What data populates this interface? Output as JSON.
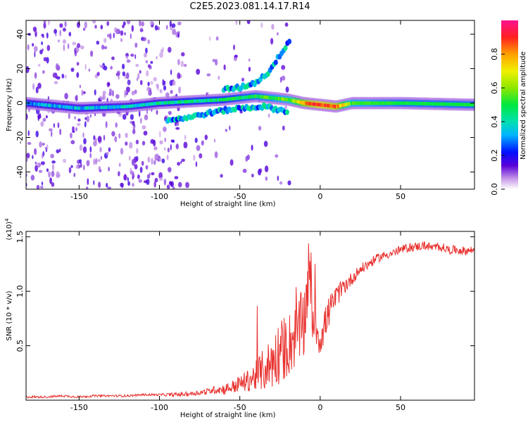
{
  "title": "C2E5.2023.081.14.17.R14",
  "colors": {
    "line": "#e8312e",
    "frame": "#000000"
  },
  "chart_data": [
    {
      "type": "heatmap",
      "xlabel": "Height of straight line (km)",
      "ylabel": "Frequency (Hz)",
      "xlim": [
        -183,
        96
      ],
      "ylim": [
        -50,
        48
      ],
      "xticks": [
        -150,
        -100,
        -50,
        0,
        50
      ],
      "yticks": [
        -40,
        -20,
        0,
        20,
        40
      ],
      "xtick_labels": [
        "-150",
        "-100",
        "-50",
        "0",
        "50"
      ],
      "ytick_labels": [
        "-40",
        "-20",
        "0",
        "20",
        "40"
      ],
      "colorbar": {
        "label": "Normalized spectral amplitude",
        "range": [
          0,
          1
        ],
        "ticks": [
          0.0,
          0.2,
          0.4,
          0.6,
          0.8
        ],
        "tick_labels": [
          "0.0",
          "0.2",
          "0.4",
          "0.6",
          "0.8"
        ]
      },
      "main_band": [
        {
          "x": -183,
          "f": 0,
          "amp": 0.3
        },
        {
          "x": -150,
          "f": -3,
          "amp": 0.35
        },
        {
          "x": -120,
          "f": -2,
          "amp": 0.35
        },
        {
          "x": -100,
          "f": 0,
          "amp": 0.4
        },
        {
          "x": -80,
          "f": 1,
          "amp": 0.45
        },
        {
          "x": -60,
          "f": 2,
          "amp": 0.45
        },
        {
          "x": -40,
          "f": 4,
          "amp": 0.5
        },
        {
          "x": -20,
          "f": 2,
          "amp": 0.55
        },
        {
          "x": -10,
          "f": 0,
          "amp": 0.8
        },
        {
          "x": 0,
          "f": -1,
          "amp": 0.9
        },
        {
          "x": 10,
          "f": -2,
          "amp": 0.85
        },
        {
          "x": 20,
          "f": 0,
          "amp": 0.55
        },
        {
          "x": 50,
          "f": 0,
          "amp": 0.5
        },
        {
          "x": 96,
          "f": -1,
          "amp": 0.5
        }
      ],
      "upper_branch": [
        {
          "x": -60,
          "f": 8
        },
        {
          "x": -50,
          "f": 9
        },
        {
          "x": -40,
          "f": 12
        },
        {
          "x": -32,
          "f": 18
        },
        {
          "x": -25,
          "f": 28
        },
        {
          "x": -18,
          "f": 38
        }
      ],
      "lower_branch": [
        {
          "x": -95,
          "f": -10
        },
        {
          "x": -80,
          "f": -8
        },
        {
          "x": -65,
          "f": -5
        },
        {
          "x": -50,
          "f": -3
        },
        {
          "x": -35,
          "f": -2
        },
        {
          "x": -20,
          "f": -5
        }
      ]
    },
    {
      "type": "line",
      "xlabel": "Height of straight line (km)",
      "ylabel": "SNR (10 * v/v)",
      "yscale_label": "(x10^4)",
      "xlim": [
        -183,
        96
      ],
      "ylim": [
        0,
        1.55
      ],
      "xticks": [
        -150,
        -100,
        -50,
        0,
        50
      ],
      "yticks": [
        0.5,
        1.0,
        1.5
      ],
      "xtick_labels": [
        "-150",
        "-100",
        "-50",
        "0",
        "50"
      ],
      "ytick_labels": [
        "0.5",
        "1.0",
        "1.5"
      ],
      "series": [
        {
          "x": [
            -183,
            -170,
            -160,
            -150,
            -140,
            -130,
            -120,
            -110,
            -100,
            -90,
            -80,
            -70,
            -65,
            -60,
            -55,
            -50,
            -45,
            -40,
            -35,
            -30,
            -25,
            -20,
            -15,
            -10,
            -7,
            -5,
            0,
            5,
            10,
            15,
            20,
            25,
            30,
            35,
            40,
            45,
            50,
            55,
            60,
            65,
            70,
            75,
            80,
            85,
            90,
            96
          ],
          "values": [
            0.03,
            0.03,
            0.04,
            0.03,
            0.04,
            0.04,
            0.04,
            0.05,
            0.05,
            0.05,
            0.06,
            0.08,
            0.1,
            0.1,
            0.12,
            0.15,
            0.18,
            0.22,
            0.28,
            0.35,
            0.45,
            0.5,
            0.6,
            0.7,
            1.2,
            0.8,
            0.55,
            0.8,
            0.95,
            1.05,
            1.12,
            1.2,
            1.25,
            1.3,
            1.33,
            1.35,
            1.38,
            1.4,
            1.41,
            1.42,
            1.4,
            1.41,
            1.38,
            1.38,
            1.37,
            1.38
          ],
          "noise": [
            0.01,
            0.01,
            0.01,
            0.01,
            0.01,
            0.01,
            0.01,
            0.01,
            0.01,
            0.02,
            0.02,
            0.03,
            0.04,
            0.05,
            0.06,
            0.08,
            0.1,
            0.14,
            0.2,
            0.25,
            0.3,
            0.3,
            0.3,
            0.35,
            0.3,
            0.25,
            0.15,
            0.15,
            0.1,
            0.08,
            0.06,
            0.05,
            0.05,
            0.04,
            0.04,
            0.04,
            0.04,
            0.04,
            0.04,
            0.04,
            0.04,
            0.04,
            0.04,
            0.04,
            0.04,
            0.04
          ]
        }
      ]
    }
  ]
}
